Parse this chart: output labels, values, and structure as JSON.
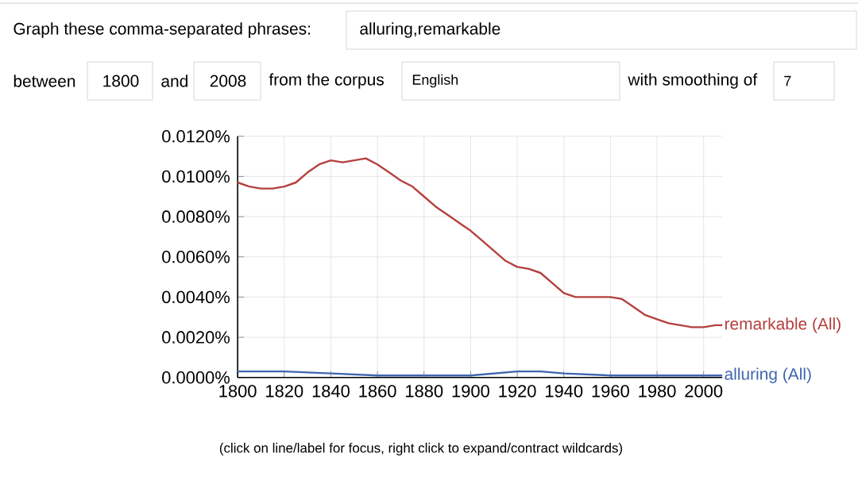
{
  "chart_data": {
    "type": "line",
    "annotations": [
      "Graph these comma-separated phrases:",
      "alluring,remarkable",
      "between",
      "1800",
      "and",
      "2008",
      "from the corpus",
      "English",
      "with smoothing of",
      "7",
      "(click on line/label for focus, right click to expand/contract wildcards)"
    ],
    "series": [
      {
        "name": "remarkable (All)",
        "color": "#b5403e",
        "x": [
          1800,
          1805,
          1810,
          1815,
          1820,
          1825,
          1830,
          1835,
          1840,
          1845,
          1850,
          1855,
          1860,
          1865,
          1870,
          1875,
          1880,
          1885,
          1890,
          1895,
          1900,
          1905,
          1910,
          1915,
          1920,
          1925,
          1930,
          1935,
          1940,
          1945,
          1950,
          1955,
          1960,
          1965,
          1970,
          1975,
          1980,
          1985,
          1990,
          1995,
          2000,
          2005,
          2008
        ],
        "values": [
          0.0097,
          0.0095,
          0.0094,
          0.0094,
          0.0095,
          0.0097,
          0.0102,
          0.0106,
          0.0108,
          0.0107,
          0.0108,
          0.0109,
          0.0106,
          0.0102,
          0.0098,
          0.0095,
          0.009,
          0.0085,
          0.0081,
          0.0077,
          0.0073,
          0.0068,
          0.0063,
          0.0058,
          0.0055,
          0.0054,
          0.0052,
          0.0047,
          0.0042,
          0.004,
          0.004,
          0.004,
          0.004,
          0.0039,
          0.0035,
          0.0031,
          0.0029,
          0.0027,
          0.0026,
          0.0025,
          0.0025,
          0.0026,
          0.0026
        ]
      },
      {
        "name": "alluring (All)",
        "color": "#3f66b0",
        "x": [
          1800,
          1820,
          1840,
          1860,
          1880,
          1900,
          1920,
          1930,
          1940,
          1960,
          1980,
          2008
        ],
        "values": [
          0.0003,
          0.0003,
          0.0002,
          0.0001,
          0.0001,
          0.0001,
          0.0003,
          0.0003,
          0.0002,
          0.0001,
          0.0001,
          0.0001
        ]
      }
    ],
    "xlim": [
      1800,
      2008
    ],
    "ylim": [
      0,
      0.012
    ],
    "xticks": [
      1800,
      1820,
      1840,
      1860,
      1880,
      1900,
      1920,
      1940,
      1960,
      1980,
      2000
    ],
    "yticks": [
      {
        "value": 0,
        "label": "0.0000%"
      },
      {
        "value": 0.002,
        "label": "0.0020%"
      },
      {
        "value": 0.004,
        "label": "0.0040%"
      },
      {
        "value": 0.006,
        "label": "0.0060%"
      },
      {
        "value": 0.008,
        "label": "0.0080%"
      },
      {
        "value": 0.01,
        "label": "0.0100%"
      },
      {
        "value": 0.012,
        "label": "0.0120%"
      }
    ],
    "grid": true,
    "legend": false,
    "marker": "none",
    "line_style": "solid"
  }
}
